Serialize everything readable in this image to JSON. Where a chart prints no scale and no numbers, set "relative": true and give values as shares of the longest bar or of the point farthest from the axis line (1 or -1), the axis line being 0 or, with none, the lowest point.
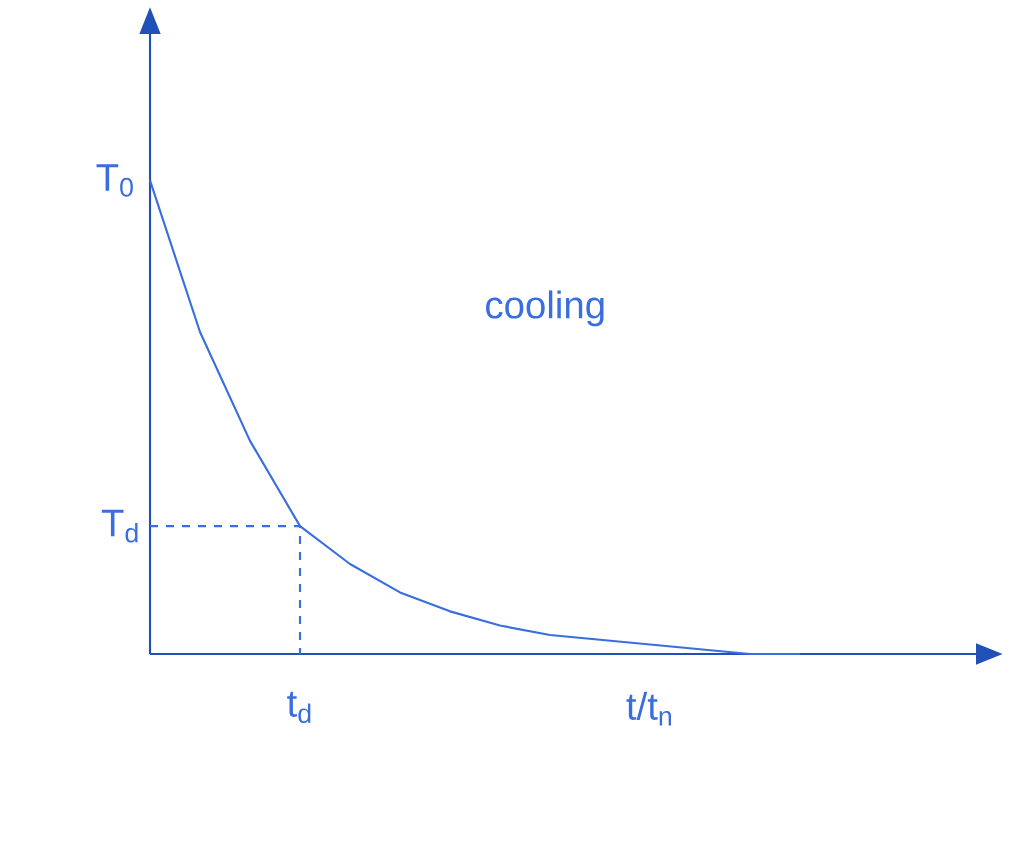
{
  "chart_data": {
    "type": "line",
    "relative": true,
    "xlabel": "t/t$_{n}$",
    "categories": [
      null,
      null,
      null,
      null,
      null,
      null,
      null,
      null,
      null,
      null,
      null,
      null,
      null,
      null
    ],
    "series": [
      {
        "color": "#3a6ee0",
        "values": [
          1.0,
          0.68,
          0.45,
          0.27,
          0.19,
          0.13,
          0.09,
          0.06,
          0.04,
          0.03,
          0.02,
          0.01,
          0.0,
          0.0
        ]
      }
    ],
    "annotations": [
      "T$_{0}$",
      "cooling",
      "t$_{d}$"
    ],
    "ref_lines": [
      {
        "axis": "y",
        "value": 0.27,
        "label": "T$_{d}$",
        "line_style": "dashed"
      }
    ],
    "marker": "none",
    "line_style": "solid"
  }
}
